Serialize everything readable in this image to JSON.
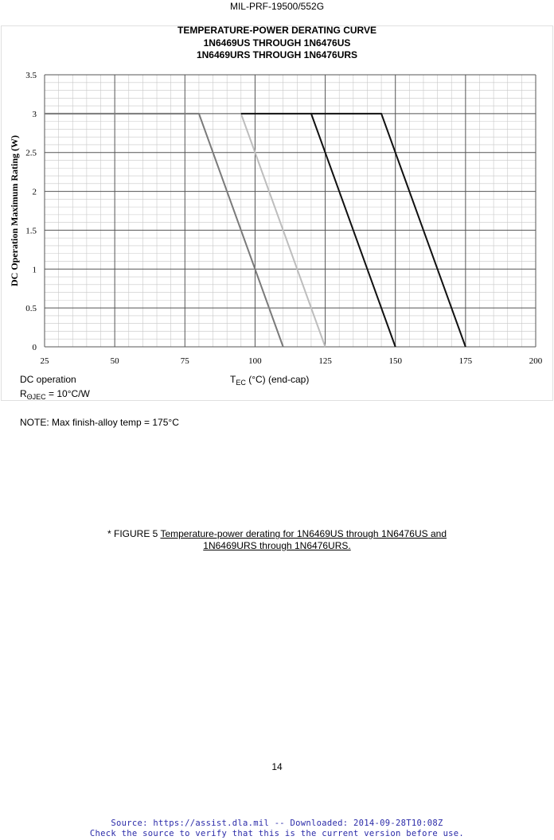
{
  "header": {
    "doc_id": "MIL-PRF-19500/552G"
  },
  "chart_data": {
    "type": "line",
    "title": [
      "TEMPERATURE-POWER DERATING CURVE",
      "1N6469US  THROUGH  1N6476US",
      "1N6469URS  THROUGH  1N6476URS"
    ],
    "xlabel_main": "T",
    "xlabel_sub": "EC",
    "xlabel_rest": " (°C) (end-cap)",
    "ylabel": "DC Operation Maximum Rating (W)",
    "xlim": [
      25,
      200
    ],
    "ylim": [
      0,
      3.5
    ],
    "x_ticks": [
      "25",
      "50",
      "75",
      "100",
      "125",
      "150",
      "175",
      "200"
    ],
    "y_ticks": [
      "0",
      "0.5",
      "1",
      "1.5",
      "2",
      "2.5",
      "3",
      "3.5"
    ],
    "grid": true,
    "series": [
      {
        "color": "#7a7a7a",
        "x": [
          25,
          80,
          110
        ],
        "y": [
          3,
          3,
          0
        ]
      },
      {
        "color": "#bdbdbd",
        "x": [
          95,
          125
        ],
        "y": [
          3,
          0
        ]
      },
      {
        "color": "#111111",
        "x": [
          95,
          120,
          150
        ],
        "y": [
          3,
          3,
          0
        ]
      },
      {
        "color": "#111111",
        "x": [
          120,
          145,
          175
        ],
        "y": [
          3,
          3,
          0
        ]
      }
    ]
  },
  "notes": {
    "dc_operation": "DC operation",
    "rtheta_main": "R",
    "rtheta_sub": "ΘJEC",
    "rtheta_rest": " = 10°C/W",
    "max_temp": "NOTE: Max finish-alloy temp = 175°C"
  },
  "figure": {
    "prefix": "*  FIGURE 5  ",
    "caption_line1": "Temperature-power derating for 1N6469US through 1N6476US and ",
    "caption_line2": "1N6469URS through 1N6476URS."
  },
  "page_number": "14",
  "source": {
    "line1": "Source: https://assist.dla.mil -- Downloaded: 2014-09-28T10:08Z",
    "line2": "Check the source to verify that this is the current version before use."
  }
}
